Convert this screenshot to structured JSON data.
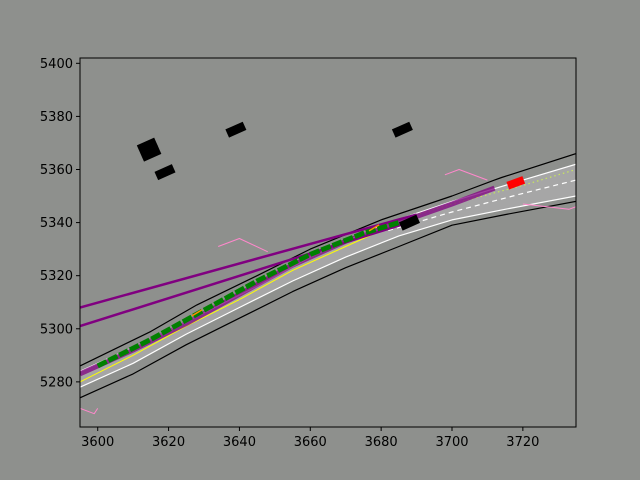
{
  "chart_data": {
    "type": "line",
    "title": "",
    "xlabel": "",
    "ylabel": "",
    "xlim": [
      3595,
      3735
    ],
    "ylim": [
      5263,
      5402
    ],
    "x_ticks": [
      3600,
      3620,
      3640,
      3660,
      3680,
      3700,
      3720
    ],
    "y_ticks": [
      5280,
      5300,
      5320,
      5340,
      5360,
      5380,
      5400
    ],
    "grid": false,
    "legend": "none",
    "colors": {
      "background": "#8e908d",
      "road_surface": "#a6a6a6",
      "road_edge_outer": "#000000",
      "road_edge_inner": "#ffffff",
      "lane_divider": "#ffffff",
      "centerline_yellow": "#ffff00",
      "centerline_dotted": "#c8e85a",
      "trajectory_purple": "#800080",
      "planned_path": "#008000",
      "ego_vehicle": "#ff0000",
      "obstacles": "#000000",
      "pink_boundary": "#ff88cc",
      "orange_marker": "#ff8c00"
    },
    "series": [
      {
        "role": "road_outer_edge_upper",
        "x": [
          3595,
          3615,
          3628,
          3645,
          3660,
          3680,
          3700,
          3712,
          3714,
          3735
        ],
        "y": [
          5286,
          5299,
          5309,
          5320,
          5330,
          5341,
          5350,
          5356,
          5357,
          5366
        ]
      },
      {
        "role": "road_inner_edge_upper",
        "x": [
          3595,
          3615,
          3630,
          3645,
          3660,
          3680,
          3700,
          3720,
          3735
        ],
        "y": [
          5284,
          5296,
          5306,
          5316,
          5327,
          5339,
          5348,
          5356,
          5362
        ]
      },
      {
        "role": "road_inner_edge_lower",
        "x": [
          3595,
          3610,
          3625,
          3640,
          3655,
          3670,
          3685,
          3700,
          3715,
          3735
        ],
        "y": [
          5278,
          5287,
          5298,
          5308,
          5318,
          5327,
          5335,
          5341,
          5345,
          5350
        ]
      },
      {
        "role": "road_outer_edge_lower",
        "x": [
          3595,
          3610,
          3625,
          3640,
          3655,
          3670,
          3685,
          3700,
          3715,
          3735
        ],
        "y": [
          5274,
          5283,
          5294,
          5304,
          5314,
          5323,
          5331,
          5339,
          5343,
          5348
        ]
      },
      {
        "role": "centerline_yellow",
        "x": [
          3595,
          3610,
          3625,
          3640,
          3655,
          3670,
          3680
        ],
        "y": [
          5280,
          5290,
          5301,
          5311,
          5322,
          5331,
          5337
        ]
      },
      {
        "role": "centerline_dotted",
        "x": [
          3680,
          3700,
          3720,
          3735
        ],
        "y": [
          5339,
          5347,
          5354,
          5360
        ]
      },
      {
        "role": "lane_divider_dashed",
        "x": [
          3682,
          3700,
          3720,
          3735
        ],
        "y": [
          5337,
          5344,
          5351,
          5356
        ]
      },
      {
        "role": "trajectory_purple_1",
        "x": [
          3595,
          3690
        ],
        "y": [
          5308,
          5343
        ]
      },
      {
        "role": "trajectory_purple_2",
        "x": [
          3595,
          3690
        ],
        "y": [
          5301,
          5341
        ]
      },
      {
        "role": "trajectory_purple_3",
        "x": [
          3595,
          3610,
          3625,
          3640,
          3655,
          3670,
          3685,
          3700,
          3712
        ],
        "y": [
          5283,
          5292,
          5302,
          5313,
          5324,
          5333,
          5340,
          5347,
          5353
        ]
      },
      {
        "role": "planned_path_green",
        "x": [
          3600,
          3615,
          3630,
          3645,
          3660,
          3675,
          3685
        ],
        "y": [
          5286,
          5296,
          5307,
          5318,
          5328,
          5336,
          5340
        ]
      },
      {
        "role": "pink_boundary_upper",
        "x": [
          3698,
          3702,
          3710
        ],
        "y": [
          5358,
          5360,
          5356
        ]
      },
      {
        "role": "pink_boundary_lower",
        "x": [
          3720,
          3733,
          3735
        ],
        "y": [
          5347,
          5345,
          5346
        ]
      },
      {
        "role": "pink_boundary_left",
        "x": [
          3634,
          3640,
          3648
        ],
        "y": [
          5331,
          5334,
          5329
        ]
      },
      {
        "role": "pink_boundary_corner",
        "x": [
          3595,
          3599,
          3600
        ],
        "y": [
          5270,
          5268,
          5270
        ]
      }
    ],
    "ego_vehicle": {
      "x": 3718,
      "y": 5355
    },
    "obstacles": [
      {
        "x": 3614,
        "y": 5369
      },
      {
        "x": 3615,
        "y": 5366
      },
      {
        "x": 3619,
        "y": 5359
      },
      {
        "x": 3639,
        "y": 5375
      },
      {
        "x": 3686,
        "y": 5375
      },
      {
        "x": 3688,
        "y": 5340
      }
    ]
  }
}
